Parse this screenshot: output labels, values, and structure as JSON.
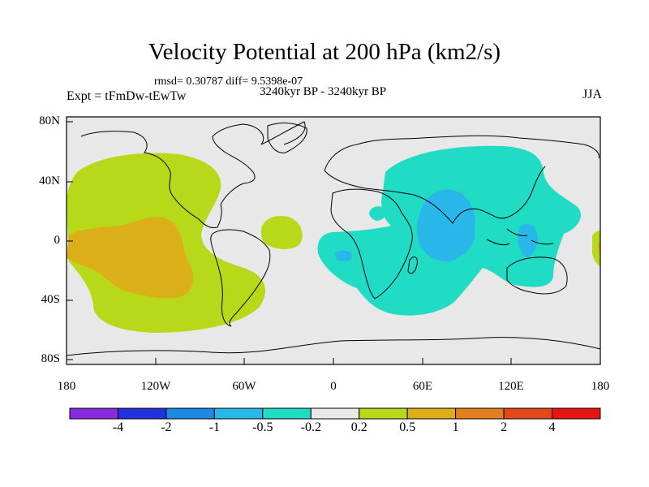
{
  "title": "Velocity Potential at 200 hPa (km2/s)",
  "stats": "rmsd= 0.30787 diff= 9.5398e-07",
  "experiment": "Expt = tFmDw-tEwTw",
  "period": "3240kyr BP - 3240kyr BP",
  "season": "JJA",
  "axes": {
    "x_ticks": [
      "180",
      "120W",
      "60W",
      "0",
      "60E",
      "120E",
      "180"
    ],
    "y_ticks": [
      "80N",
      "40N",
      "0",
      "40S",
      "80S"
    ]
  },
  "colorbar": {
    "colors": [
      "#8a2be2",
      "#2233dd",
      "#1e88e5",
      "#29b6e8",
      "#21dcc4",
      "#e8e8e8",
      "#b8d919",
      "#dcae18",
      "#e07f1e",
      "#e34816",
      "#e81410"
    ],
    "labels": [
      "-4",
      "-2",
      "-1",
      "-0.5",
      "-0.2",
      "0.2",
      "0.5",
      "1",
      "2",
      "4"
    ]
  }
}
